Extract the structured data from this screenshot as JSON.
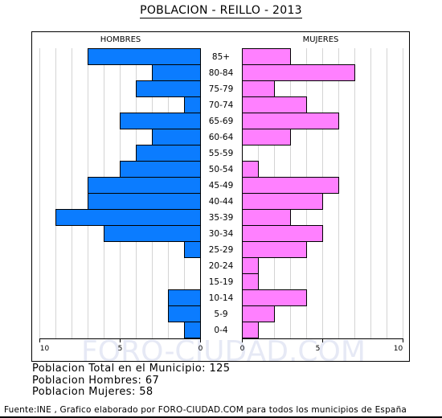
{
  "title": "POBLACION - REILLO - 2013",
  "watermark": "FORO-CIUDAD.COM",
  "chart_data": {
    "type": "bar",
    "subtype": "population-pyramid",
    "left_label": "HOMBRES",
    "right_label": "MUJERES",
    "categories": [
      "85+",
      "80-84",
      "75-79",
      "70-74",
      "65-69",
      "60-64",
      "55-59",
      "50-54",
      "45-49",
      "40-44",
      "35-39",
      "30-34",
      "25-29",
      "20-24",
      "15-19",
      "10-14",
      "5-9",
      "0-4"
    ],
    "series": [
      {
        "name": "HOMBRES",
        "color": "#0b7cff",
        "values": [
          7,
          3,
          4,
          1,
          5,
          3,
          4,
          5,
          7,
          7,
          9,
          6,
          1,
          0,
          0,
          2,
          2,
          1
        ]
      },
      {
        "name": "MUJERES",
        "color": "#ff80ff",
        "values": [
          3,
          7,
          2,
          4,
          6,
          3,
          0,
          1,
          6,
          5,
          3,
          5,
          4,
          1,
          1,
          4,
          2,
          1
        ]
      }
    ],
    "xlim": [
      0,
      10
    ],
    "x_ticks_left": [
      "10",
      "5",
      "0"
    ],
    "x_ticks_right": [
      "0",
      "5",
      "10"
    ],
    "grid": true
  },
  "stats": {
    "total": "Poblacion Total en el Municipio: 125",
    "men": "Poblacion Hombres: 67",
    "women": "Poblacion Mujeres: 58"
  },
  "footer": "Fuente:INE , Grafico elaborado por FORO-CIUDAD.COM para todos los municipios de España"
}
